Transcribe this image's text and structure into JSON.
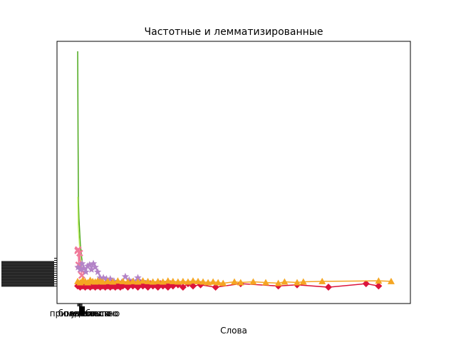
{
  "chart_data": {
    "type": "line",
    "title": "Частотные и лемматизированные",
    "xlabel": "Слова",
    "ylabel": "",
    "x_tick_labels": [
      "примечательно",
      "учесть",
      "Что",
      "подобного",
      "большинство",
      "являться"
    ],
    "grid": false,
    "legend": "none",
    "series": [
      {
        "color": "#4aa81a",
        "marker": "none",
        "x": [
          0,
          0.3,
          0.6,
          1.0,
          1.5,
          2.1,
          3.2,
          4.4
        ],
        "values": [
          1000,
          620,
          360,
          290,
          240,
          180,
          120,
          75
        ]
      },
      {
        "color": "#c5f06a",
        "marker": "none",
        "x": [
          0,
          0.5,
          1.2,
          2.0,
          3.0
        ],
        "values": [
          380,
          250,
          190,
          130,
          80
        ]
      },
      {
        "color": "#f07a9a",
        "marker": "x",
        "x": [
          0.0,
          0.4,
          0.8,
          1.6,
          2.5,
          3.3
        ],
        "values": [
          150,
          155,
          90,
          140,
          70,
          45
        ]
      },
      {
        "color": "#b383c7",
        "marker": "*",
        "x": [
          0.3,
          2.0,
          3.5,
          5.0,
          6.5,
          8.0,
          9.5,
          11.0,
          12.5,
          14.0,
          16.0,
          18.0,
          20.5,
          23.0,
          26.0,
          29.0,
          32.0,
          35.0,
          38.0,
          41.0,
          44.5,
          48.0,
          52.0
        ],
        "values": [
          80,
          70,
          95,
          75,
          60,
          85,
          90,
          70,
          95,
          80,
          60,
          35,
          35,
          30,
          30,
          20,
          15,
          15,
          40,
          25,
          20,
          35,
          20
        ]
      },
      {
        "color": "#dc143c",
        "marker": "D",
        "x": [
          0,
          1,
          2,
          3,
          4,
          5,
          6,
          7,
          8,
          9,
          10,
          11,
          12,
          13,
          14,
          15,
          16,
          17,
          18,
          19,
          20,
          21,
          22,
          23,
          24,
          25,
          26,
          27,
          28,
          29,
          30,
          31,
          32,
          33,
          34,
          35,
          36,
          38,
          40,
          42,
          44,
          46,
          48,
          50,
          52,
          54,
          56,
          58,
          60,
          62,
          64,
          66,
          68,
          70,
          72,
          74,
          76,
          80,
          84,
          88,
          92,
          98,
          110,
          130,
          160,
          175,
          200,
          230,
          240
        ],
        "values": [
          0,
          5,
          -5,
          10,
          0,
          5,
          -5,
          10,
          0,
          5,
          -5,
          10,
          0,
          5,
          -5,
          10,
          0,
          5,
          -5,
          10,
          0,
          5,
          -5,
          10,
          0,
          5,
          -5,
          10,
          0,
          5,
          -5,
          10,
          0,
          5,
          -5,
          10,
          0,
          5,
          -5,
          10,
          0,
          5,
          -5,
          10,
          0,
          5,
          -5,
          10,
          0,
          5,
          -5,
          10,
          0,
          5,
          -5,
          10,
          0,
          5,
          -5,
          10,
          0,
          5,
          -5,
          10,
          0,
          5,
          -5,
          10,
          0
        ]
      },
      {
        "color": "#f5a623",
        "marker": "^",
        "x": [
          0,
          2,
          4,
          6,
          8,
          10,
          12,
          14,
          16,
          18,
          20,
          24,
          28,
          32,
          36,
          40,
          44,
          48,
          52,
          56,
          60,
          64,
          68,
          72,
          76,
          80,
          84,
          88,
          92,
          96,
          100,
          104,
          108,
          112,
          116,
          125,
          130,
          140,
          150,
          160,
          165,
          175,
          180,
          195,
          240,
          250
        ],
        "values": [
          20,
          15,
          25,
          20,
          15,
          25,
          20,
          18,
          22,
          20,
          18,
          20,
          18,
          22,
          20,
          18,
          20,
          18,
          22,
          20,
          18,
          20,
          18,
          22,
          20,
          18,
          20,
          18,
          22,
          20,
          18,
          15,
          18,
          15,
          12,
          18,
          15,
          18,
          15,
          12,
          18,
          15,
          18,
          20,
          22,
          20
        ]
      }
    ]
  }
}
